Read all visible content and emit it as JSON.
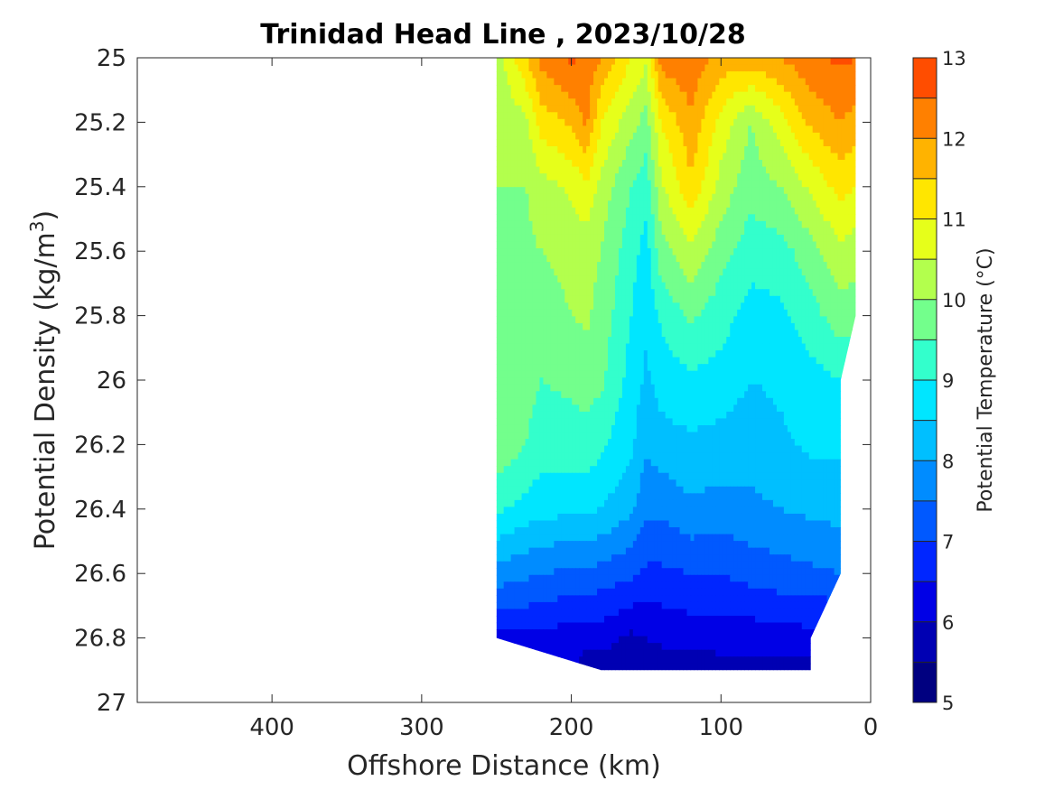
{
  "chart_data": {
    "type": "contour",
    "title": "Trinidad Head Line , 2023/10/28",
    "xlabel": "Offshore Distance (km)",
    "ylabel_main": "Potential Density (kg/m",
    "ylabel_sup": "3",
    "ylabel_end": ")",
    "xlim": [
      490,
      0
    ],
    "xreversed": true,
    "ylim": [
      25,
      27
    ],
    "yreversed": true,
    "xticks": [
      400,
      300,
      200,
      100,
      0
    ],
    "xtick_labels": [
      "400",
      "300",
      "200",
      "100",
      "0"
    ],
    "yticks": [
      25,
      25.2,
      25.4,
      25.6,
      25.8,
      26,
      26.2,
      26.4,
      26.6,
      26.8,
      27
    ],
    "ytick_labels": [
      "25",
      "25.2",
      "25.4",
      "25.6",
      "25.8",
      "26",
      "26.2",
      "26.4",
      "26.6",
      "26.8",
      "27"
    ],
    "colorbar": {
      "label": "Potential Temperature (°C)",
      "range": [
        5,
        13
      ],
      "ticks": [
        "5",
        "6",
        "7",
        "8",
        "9",
        "10",
        "11",
        "12",
        "13"
      ],
      "step": 0.5,
      "colors": [
        "#000080",
        "#0000b3",
        "#0000e6",
        "#0026ff",
        "#0059ff",
        "#008cff",
        "#00bfff",
        "#00e6ff",
        "#33ffcc",
        "#73ff8c",
        "#b3ff4d",
        "#e6ff1a",
        "#ffe600",
        "#ffb300",
        "#ff8000",
        "#ff4d00",
        "#f01400",
        "#b30000"
      ]
    },
    "x_stations_km": [
      250,
      230,
      220,
      200,
      190,
      180,
      160,
      150,
      140,
      120,
      100,
      80,
      60,
      40,
      20,
      10
    ],
    "rows": [
      {
        "density": 25.0,
        "temps": [
          10.2,
          11.5,
          12.2,
          12.6,
          12.4,
          12.0,
          11.0,
          10.6,
          12.3,
          12.4,
          11.8,
          11.8,
          12.0,
          12.4,
          12.6,
          12.5
        ]
      },
      {
        "density": 25.2,
        "temps": [
          10.0,
          10.4,
          11.2,
          11.6,
          12.1,
          11.0,
          10.2,
          9.8,
          11.0,
          11.9,
          10.8,
          10.0,
          10.8,
          11.6,
          12.0,
          11.8
        ]
      },
      {
        "density": 25.4,
        "temps": [
          10.0,
          10.0,
          10.3,
          10.6,
          10.9,
          10.3,
          9.5,
          9.2,
          10.4,
          11.4,
          10.3,
          9.7,
          10.0,
          10.6,
          11.2,
          11.0
        ]
      },
      {
        "density": 25.6,
        "temps": [
          10.0,
          9.9,
          10.0,
          10.2,
          10.2,
          10.0,
          9.2,
          8.8,
          9.8,
          10.4,
          9.7,
          9.2,
          9.3,
          9.8,
          10.4,
          10.2
        ]
      },
      {
        "density": 25.8,
        "temps": [
          10.0,
          9.8,
          9.7,
          10.0,
          10.1,
          9.8,
          9.0,
          8.6,
          9.1,
          9.6,
          9.2,
          8.8,
          8.9,
          9.3,
          9.8,
          9.7
        ]
      },
      {
        "density": 26.0,
        "temps": [
          10.0,
          9.7,
          9.5,
          9.6,
          9.7,
          9.6,
          8.8,
          8.4,
          8.7,
          8.9,
          8.8,
          8.5,
          8.6,
          8.8,
          9.0,
          null
        ]
      },
      {
        "density": 26.2,
        "temps": [
          9.9,
          9.5,
          9.2,
          9.3,
          9.3,
          9.1,
          8.6,
          8.1,
          8.3,
          8.4,
          8.3,
          8.2,
          8.4,
          8.6,
          8.6,
          null
        ]
      },
      {
        "density": 26.4,
        "temps": [
          9.1,
          8.8,
          8.7,
          8.6,
          8.6,
          8.5,
          8.1,
          7.6,
          7.6,
          7.9,
          7.8,
          7.9,
          8.0,
          8.1,
          8.2,
          null
        ]
      },
      {
        "density": 26.6,
        "temps": [
          7.8,
          7.6,
          7.5,
          7.4,
          7.4,
          7.3,
          7.1,
          6.9,
          6.9,
          7.0,
          7.0,
          7.2,
          7.3,
          7.4,
          7.5,
          null
        ]
      },
      {
        "density": 26.8,
        "temps": [
          6.3,
          6.4,
          6.4,
          6.2,
          6.2,
          6.2,
          5.9,
          6.0,
          6.1,
          6.2,
          6.2,
          6.2,
          6.3,
          6.3,
          null,
          null
        ]
      },
      {
        "density": 26.9,
        "temps": [
          null,
          null,
          null,
          null,
          null,
          5.7,
          5.6,
          5.6,
          5.7,
          5.7,
          5.8,
          5.8,
          5.8,
          5.8,
          null,
          null
        ]
      }
    ]
  }
}
